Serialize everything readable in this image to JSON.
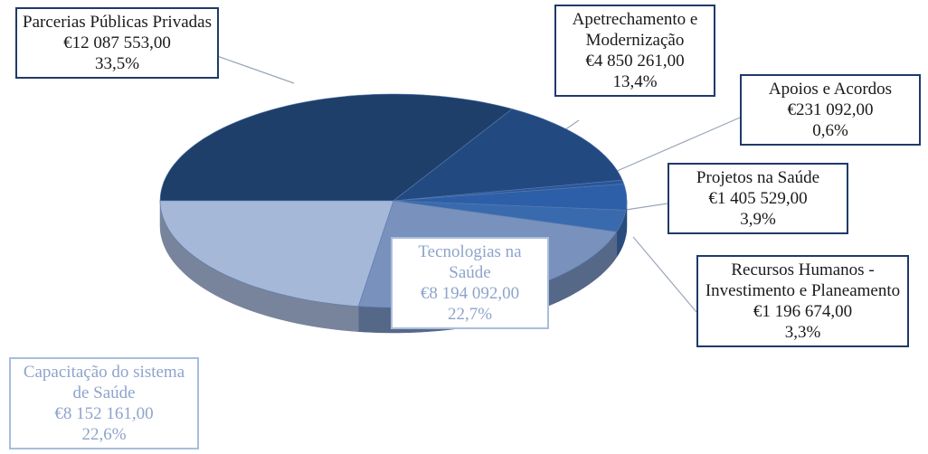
{
  "chart_data": {
    "type": "pie",
    "categories": [
      "Parcerias Públicas Privadas",
      "Apetrechamento e Modernização",
      "Apoios e Acordos",
      "Projetos na Saúde",
      "Recursos Humanos - Investimento e Planeamento",
      "Tecnologias na Saúde",
      "Capacitação do sistema de Saúde"
    ],
    "values": [
      33.5,
      13.4,
      0.6,
      3.9,
      3.3,
      22.7,
      22.6
    ],
    "value_labels": [
      "33,5%",
      "13,4%",
      "0,6%",
      "3,9%",
      "3,3%",
      "22,7%",
      "22,6%"
    ],
    "amount_labels": [
      "€12 087 553,00",
      "€4 850 261,00",
      "€231 092,00",
      "€1 405 529,00",
      "€1 196 674,00",
      "€8 194 092,00",
      "€8 152 161,00"
    ],
    "colors": [
      "#1f3f6b",
      "#234a80",
      "#2a5699",
      "#2d5fa8",
      "#3a6aae",
      "#7891bd",
      "#a5b8d8"
    ]
  }
}
